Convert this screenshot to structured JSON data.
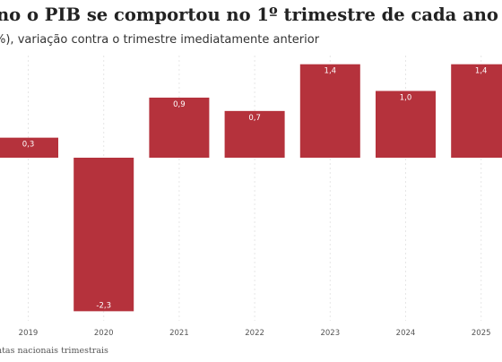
{
  "chart_data": {
    "type": "bar",
    "title": "no o PIB se comportou no 1º trimestre de cada ano",
    "subtitle": "%), variação contra o trimestre imediatamente anterior",
    "categories": [
      "2019",
      "2020",
      "2021",
      "2022",
      "2023",
      "2024",
      "2025"
    ],
    "values": [
      0.3,
      -2.3,
      0.9,
      0.7,
      1.4,
      1.0,
      1.4
    ],
    "value_labels": [
      "0,3",
      "-2,3",
      "0,9",
      "0,7",
      "1,4",
      "1,0",
      "1,4"
    ],
    "ylim": [
      -2.3,
      1.4
    ],
    "grid": true,
    "bar_color": "#b5323c"
  },
  "footer": {
    "source": "ntas nacionais trimestrais"
  }
}
